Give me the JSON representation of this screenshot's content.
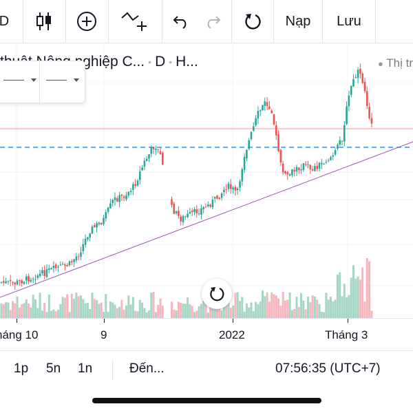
{
  "toolbar": {
    "partial_left": "D",
    "load_label": "Nạp",
    "save_label": "Lưu"
  },
  "legend": {
    "symbol_title": "thuật Nông nghiệp C...",
    "interval": "D",
    "exchange": "H...",
    "right_label": "Thị tr"
  },
  "xaxis": {
    "labels": [
      "háng 10",
      "9",
      "2022",
      "Tháng 3"
    ]
  },
  "bottom": {
    "range1": "1p",
    "range2": "5n",
    "range3": "1n",
    "goto": "Đến...",
    "time": "07:56:35 (UTC+7)"
  },
  "colors": {
    "up": "#26a69a",
    "down": "#ef5350",
    "vol_up": "#a5d6c4",
    "vol_down": "#f7b6bd",
    "trendline": "#9b59b6",
    "hline_dash": "#2196f3",
    "hline_red": "#ef9a9a"
  },
  "icons": {
    "candles": "candlestick-icon",
    "add": "plus-circle-icon",
    "indicator": "indicator-add-icon",
    "undo": "undo-icon",
    "redo": "redo-icon",
    "reload": "reload-icon"
  }
}
